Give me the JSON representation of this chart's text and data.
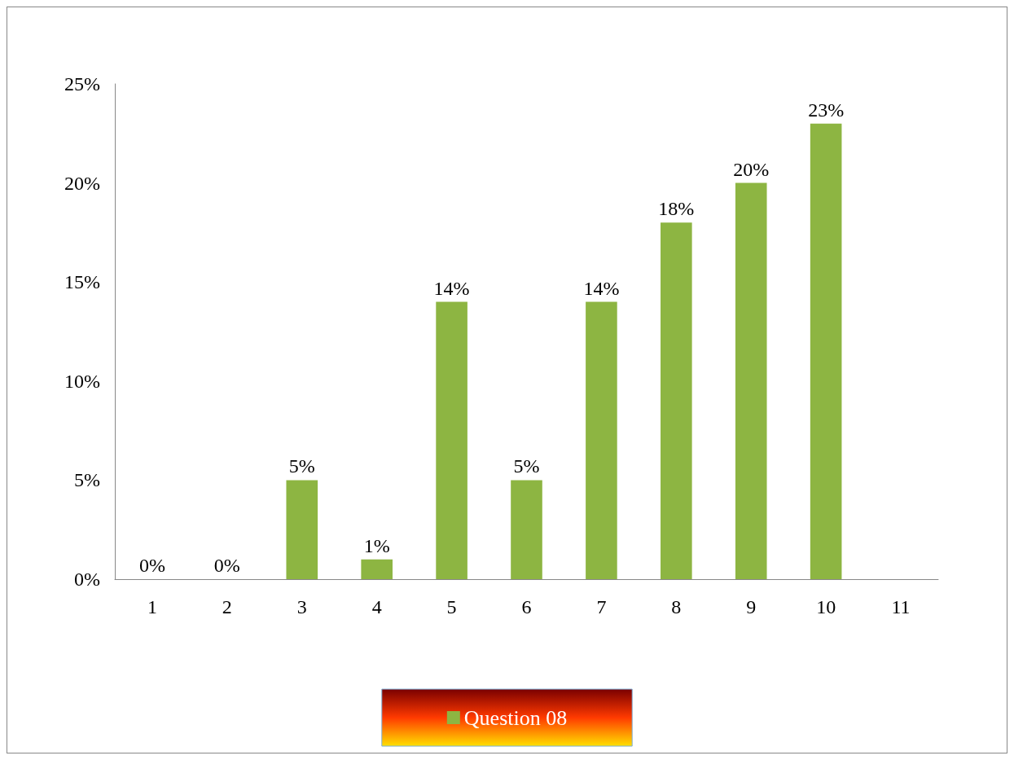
{
  "chart_data": {
    "type": "bar",
    "categories": [
      "1",
      "2",
      "3",
      "4",
      "5",
      "6",
      "7",
      "8",
      "9",
      "10",
      "11"
    ],
    "series": [
      {
        "name": "Question 08",
        "color": "#8db542",
        "values": [
          0,
          0,
          5,
          1,
          14,
          5,
          14,
          18,
          20,
          23,
          null
        ],
        "value_labels": [
          "0%",
          "0%",
          "5%",
          "1%",
          "14%",
          "5%",
          "14%",
          "18%",
          "20%",
          "23%",
          null
        ]
      }
    ],
    "ylim": [
      0,
      25
    ],
    "yticks": [
      {
        "value": 0,
        "label": "0%"
      },
      {
        "value": 5,
        "label": "5%"
      },
      {
        "value": 10,
        "label": "10%"
      },
      {
        "value": 15,
        "label": "15%"
      },
      {
        "value": 20,
        "label": "20%"
      },
      {
        "value": 25,
        "label": "25%"
      }
    ],
    "grid": false,
    "legend": "bottom"
  }
}
